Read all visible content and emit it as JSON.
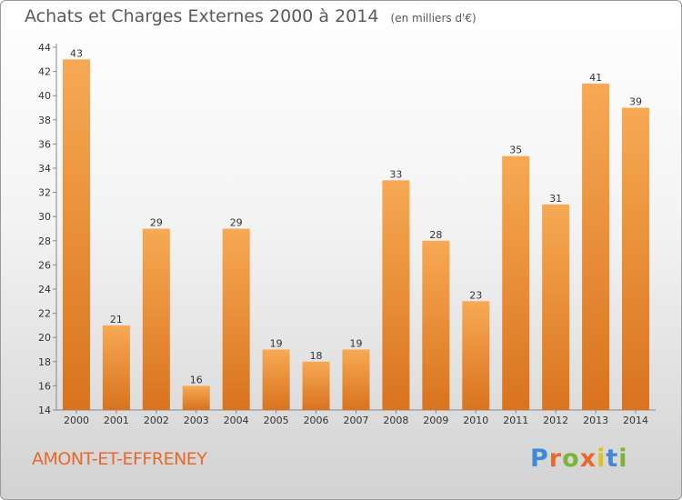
{
  "header": {
    "title": "Achats et Charges Externes 2000 à 2014",
    "unit": "(en milliers d'€)"
  },
  "footer": {
    "commune": "AMONT-ET-EFFRENEY",
    "logo_text": "Proxiti",
    "logo_colors": [
      "#3d8ad6",
      "#e8692b",
      "#7ab534",
      "#e8692b",
      "#e0c21e",
      "#3d8ad6",
      "#7ab534"
    ]
  },
  "colors": {
    "bar_top": "#f7a954",
    "bar_bottom": "#d9731e",
    "axis": "#888888",
    "grid": "#c8c8c8",
    "text": "#333333"
  },
  "chart_data": {
    "type": "bar",
    "title": "Achats et Charges Externes 2000 à 2014",
    "subtitle": "(en milliers d'€)",
    "xlabel": "",
    "ylabel": "",
    "categories": [
      "2000",
      "2001",
      "2002",
      "2003",
      "2004",
      "2005",
      "2006",
      "2007",
      "2008",
      "2009",
      "2010",
      "2011",
      "2012",
      "2013",
      "2014"
    ],
    "values": [
      43,
      21,
      29,
      16,
      29,
      19,
      18,
      19,
      33,
      28,
      23,
      35,
      31,
      41,
      39
    ],
    "ylim": [
      14,
      44
    ],
    "yticks": [
      14,
      16,
      18,
      20,
      22,
      24,
      26,
      28,
      30,
      32,
      34,
      36,
      38,
      40,
      42,
      44
    ],
    "grid": false,
    "legend": "none",
    "data_labels": true
  }
}
